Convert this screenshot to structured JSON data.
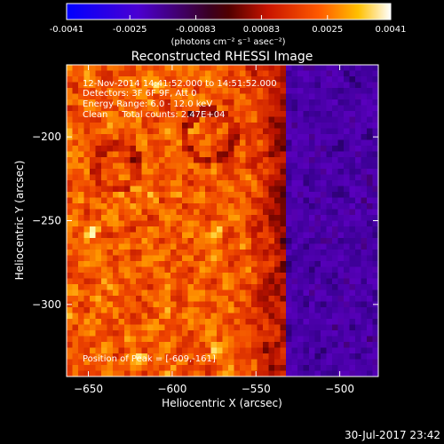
{
  "chart_data": {
    "type": "heatmap",
    "title": "Reconstructed RHESSI Image",
    "xlabel": "Heliocentric X (arcsec)",
    "ylabel": "Heliocentric Y (arcsec)",
    "xlim": [
      -663,
      -477
    ],
    "ylim": [
      -343,
      -157
    ],
    "x_ticks": [
      -650,
      -600,
      -550,
      -500
    ],
    "y_ticks": [
      -200,
      -250,
      -300
    ],
    "colorbar": {
      "ticks": [
        "-0.0041",
        "-0.0025",
        "-0.00083",
        "0.00083",
        "0.0025",
        "0.0041"
      ],
      "range": [
        -0.0041,
        0.0041
      ],
      "unit_label": "(photons cm⁻² s⁻¹ asec⁻²)"
    },
    "annotations": [
      "12-Nov-2014 14:41:52.000 to 14:51:52.000",
      "Detectors: 3F 6F 9F, Att 0",
      "Energy Range: 6.0 - 12.0 keV",
      "Clean     Total counts: 2.47E+04"
    ],
    "peak_label": "Position of Peak = [-609,-161]",
    "peak_position": [
      -609,
      -161
    ],
    "timestamp": "30-Jul-2017 23:42",
    "grid": false
  }
}
